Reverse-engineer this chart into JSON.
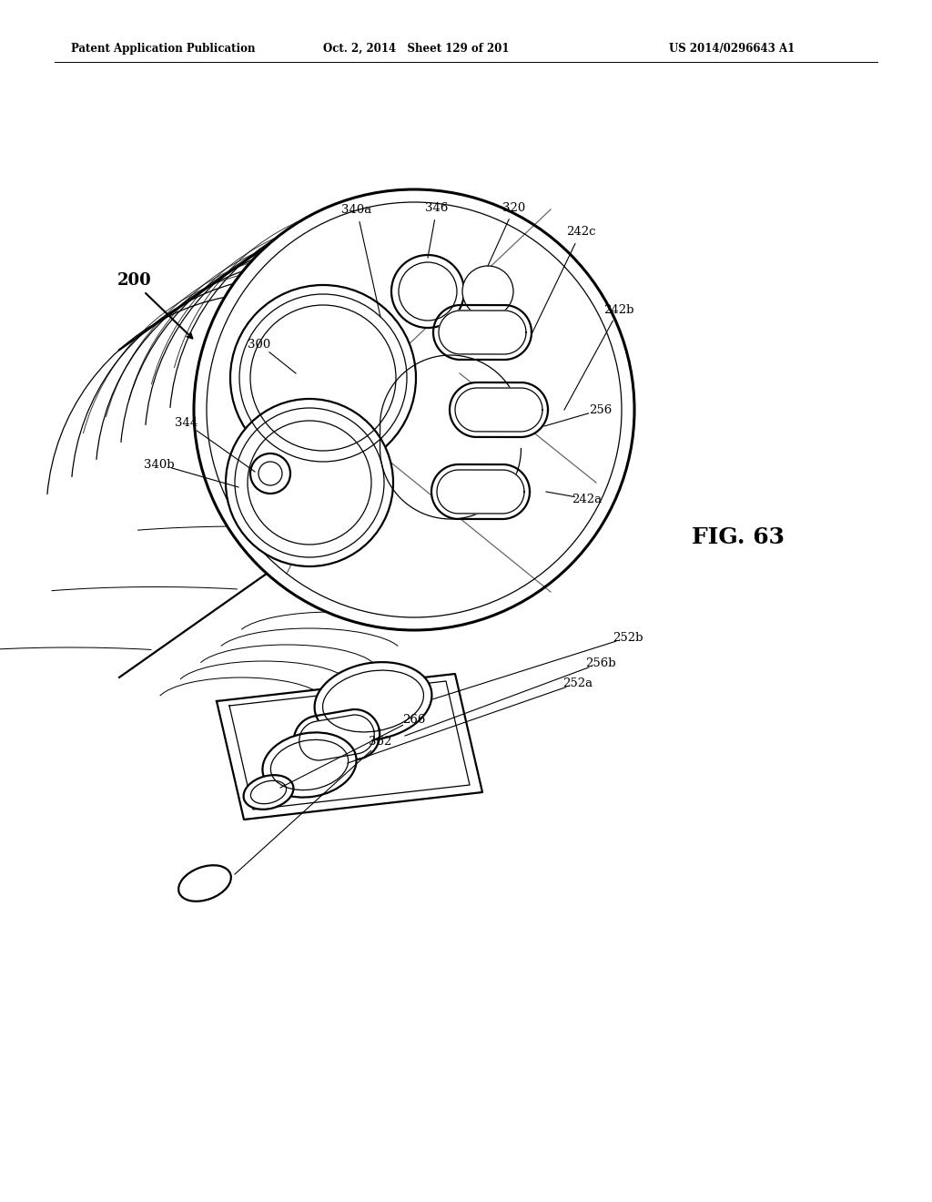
{
  "header_left": "Patent Application Publication",
  "header_mid": "Oct. 2, 2014   Sheet 129 of 201",
  "header_right": "US 2014/0296643 A1",
  "fig_label": "FIG. 63",
  "background_color": "#ffffff",
  "line_color": "#000000",
  "lw_main": 1.6,
  "lw_thin": 0.9,
  "lw_thick": 2.2,
  "lw_medium": 1.2
}
